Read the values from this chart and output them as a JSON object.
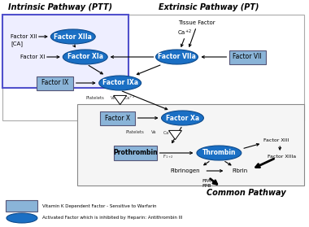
{
  "background_color": "#ffffff",
  "intrinsic_label": "Intrinsic Pathway (PTT)",
  "extrinsic_label": "Extrinsic Pathway (PT)",
  "common_label": "Common Pathway",
  "legend_rect_label": "Vitamin K Dependent Factor - Sensitive to Warfarin",
  "legend_oval_label": "Activated Factor which is inhibited by Heparin: Antithrombin III",
  "rect_color": "#8ab4d8",
  "rect_edge": "#555577",
  "oval_color": "#1a6fc4",
  "oval_edge": "#0d4a8c",
  "oval_text_color": "#ffffff",
  "rect_text_color": "#000000",
  "intrinsic_box_edge": "#5050cc",
  "intrinsic_box_face": "#eeeeff",
  "common_box_edge": "#888888",
  "common_box_face": "#f5f5f5"
}
